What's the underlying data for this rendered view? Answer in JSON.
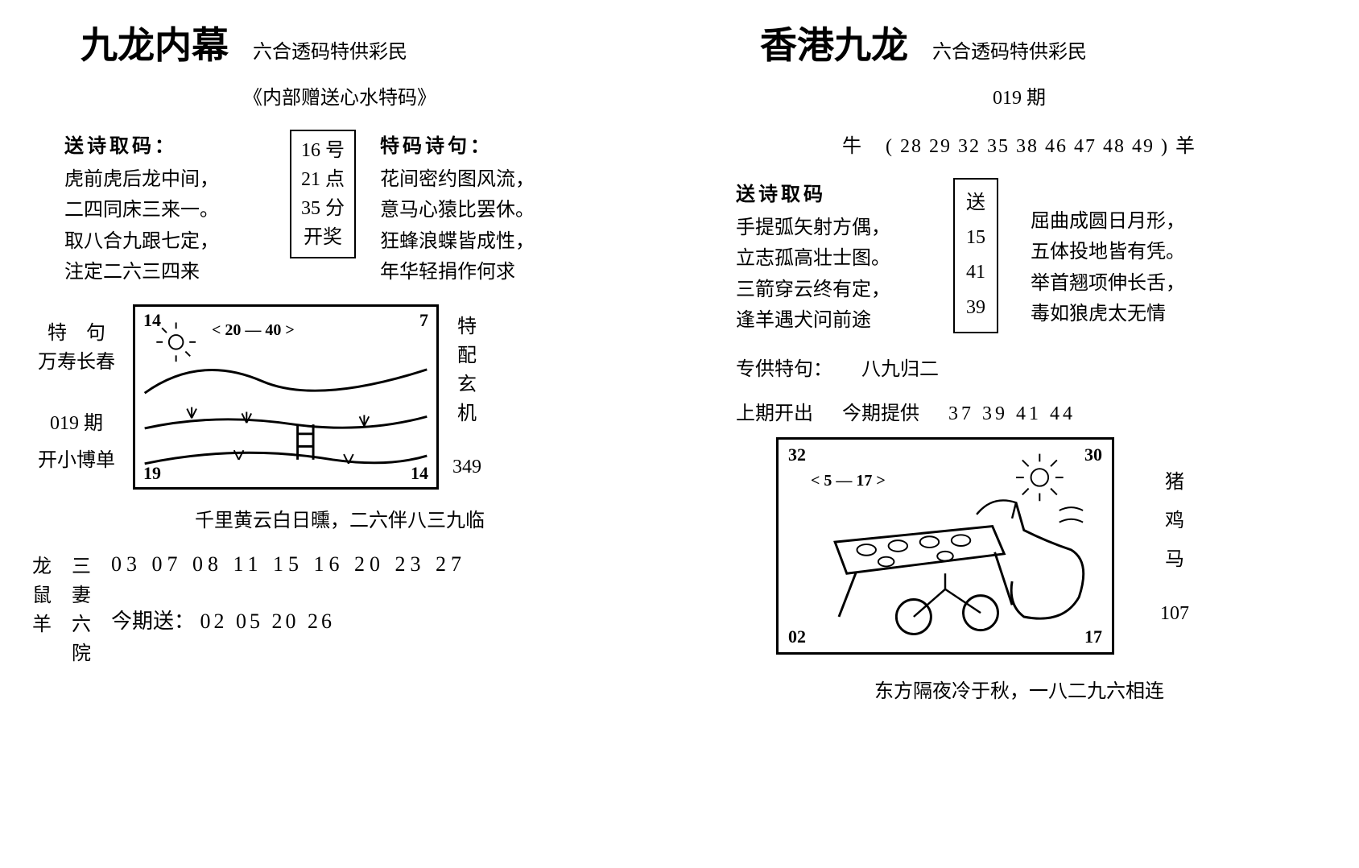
{
  "left": {
    "title": "九龙内幕",
    "subtitle": "六合透码特供彩民",
    "header_line": "《内部赠送心水特码》",
    "poem_label": "送诗取码：",
    "poem": [
      "虎前虎后龙中间，",
      "二四同床三来一。",
      "取八合九跟七定，",
      "注定二六三四来"
    ],
    "box_lines": [
      "16 号",
      "21 点",
      "35 分",
      "开奖"
    ],
    "right_label": "特码诗句：",
    "right_poem": [
      "花间密约图风流，",
      "意马心猿比罢休。",
      "狂蜂浪蝶皆成性，",
      "年华轻捐作何求"
    ],
    "side_left_top": "特　句",
    "side_left_sub": "万寿长春",
    "side_left_period": "019 期",
    "side_left_bottom": "开小博单",
    "side_right": "特配玄机",
    "side_right_num": "349",
    "drawing": {
      "tl": "14",
      "tr": "7",
      "bl": "19",
      "br": "14",
      "range": "< 20 — 40 >"
    },
    "below_drawing": "千里黄云白日曛，二六伴八三九临",
    "bottom_stack1": [
      "龙",
      "鼠",
      "羊"
    ],
    "bottom_stack2": [
      "三",
      "妻",
      "六",
      "院"
    ],
    "numbers": "03  07  08  11  15  16  20  23  27",
    "final_label": "今期送：",
    "final_numbers": "02  05  20  26"
  },
  "right": {
    "title": "香港九龙",
    "subtitle": "六合透码特供彩民",
    "period": "019 期",
    "numbers_line_left": "牛",
    "numbers_line_nums": "( 28  29  32  35  38  46  47  48  49    ) 羊",
    "poem_label": "送诗取码",
    "poem": [
      "手提弧矢射方偶，",
      "立志孤高壮士图。",
      "三箭穿云终有定，",
      "逢羊遇犬问前途"
    ],
    "box_header": "送",
    "box_nums": [
      "15",
      "41",
      "39"
    ],
    "right_poem": [
      "屈曲成圆日月形，",
      "五体投地皆有凭。",
      "举首翘项伸长舌，",
      "毒如狼虎太无情"
    ],
    "special_label": "专供特句：",
    "special_value": "八九归二",
    "prev_label": "上期开出",
    "cur_label": "今期提供",
    "cur_nums": "37  39  41  44",
    "drawing": {
      "tl": "32",
      "tr": "30",
      "bl": "02",
      "br": "17",
      "range": "< 5 — 17 >"
    },
    "side_right": [
      "猪",
      "鸡",
      "马"
    ],
    "side_right_num": "107",
    "below_drawing": "东方隔夜冷于秋，一八二九六相连"
  },
  "colors": {
    "fg": "#000000",
    "bg": "#ffffff"
  }
}
